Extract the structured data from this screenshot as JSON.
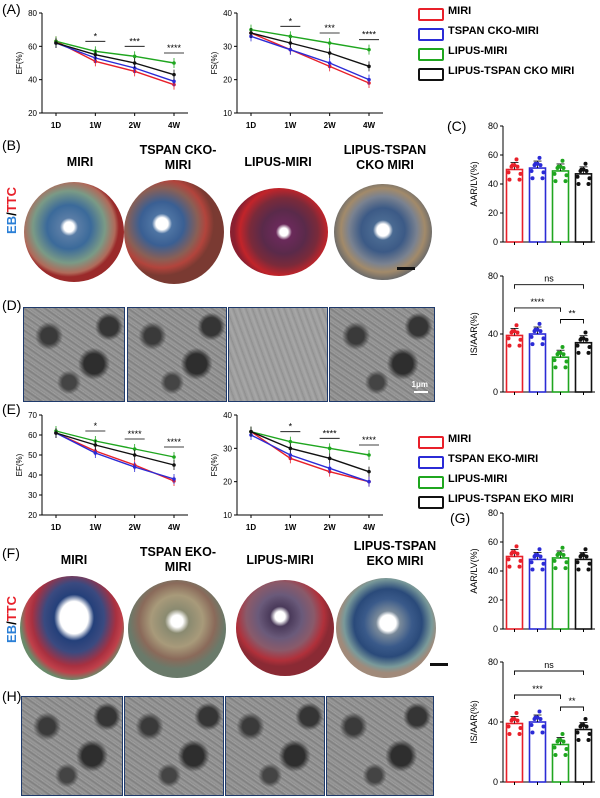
{
  "panels": {
    "A": "(A)",
    "B": "(B)",
    "C": "(C)",
    "D": "(D)",
    "E": "(E)",
    "F": "(F)",
    "G": "(G)",
    "H": "(H)"
  },
  "colors": {
    "red": "#e8202a",
    "blue": "#2b2bd6",
    "green": "#1fa61f",
    "black": "#111111"
  },
  "legend_top": [
    "MIRI",
    "TSPAN CKO-MIRI",
    "LIPUS-MIRI",
    "LIPUS-TSPAN CKO MIRI"
  ],
  "legend_bottom": [
    "MIRI",
    "TSPAN EKO-MIRI",
    "LIPUS-MIRI",
    "LIPUS-TSPAN EKO MIRI"
  ],
  "row_b_headers": [
    "MIRI",
    "TSPAN CKO-\nMIRI",
    "LIPUS-MIRI",
    "LIPUS-TSPAN\nCKO MIRI"
  ],
  "row_f_headers": [
    "MIRI",
    "TSPAN EKO-\nMIRI",
    "LIPUS-MIRI",
    "LIPUS-TSPAN\nEKO MIRI"
  ],
  "stain_label": {
    "eb": "EB",
    "slash": "/",
    "ttc": "TTC"
  },
  "scale_label": "1μm",
  "chart_data": [
    {
      "id": "A-EF",
      "type": "line",
      "ylabel": "EF(%)",
      "categories": [
        "1D",
        "1W",
        "2W",
        "4W"
      ],
      "ylim": [
        20,
        80
      ],
      "yticks": [
        20,
        40,
        60,
        80
      ],
      "series": [
        {
          "name": "MIRI",
          "values": [
            63,
            51,
            45,
            37
          ]
        },
        {
          "name": "TSPAN CKO-MIRI",
          "values": [
            62,
            53,
            47,
            39
          ]
        },
        {
          "name": "LIPUS-MIRI",
          "values": [
            63,
            57,
            54,
            50
          ]
        },
        {
          "name": "LIPUS-TSPAN CKO MIRI",
          "values": [
            62,
            55,
            50,
            43
          ]
        }
      ],
      "sig": [
        "",
        "*",
        "***",
        "****"
      ]
    },
    {
      "id": "A-FS",
      "type": "line",
      "ylabel": "FS(%)",
      "categories": [
        "1D",
        "1W",
        "2W",
        "4W"
      ],
      "ylim": [
        10,
        40
      ],
      "yticks": [
        10,
        20,
        30,
        40
      ],
      "series": [
        {
          "name": "MIRI",
          "values": [
            34,
            29,
            24,
            19
          ]
        },
        {
          "name": "TSPAN CKO-MIRI",
          "values": [
            33,
            29,
            25,
            20
          ]
        },
        {
          "name": "LIPUS-MIRI",
          "values": [
            35,
            33,
            31,
            29
          ]
        },
        {
          "name": "LIPUS-TSPAN CKO MIRI",
          "values": [
            34,
            31,
            28,
            24
          ]
        }
      ],
      "sig": [
        "",
        "*",
        "***",
        "****"
      ]
    },
    {
      "id": "C-AAR",
      "type": "bar",
      "ylabel": "AAR/LV(%)",
      "categories": [
        "MIRI",
        "TSPAN CKO-MIRI",
        "LIPUS-MIRI",
        "LIPUS-TSPAN CKO MIRI"
      ],
      "values": [
        50,
        51,
        49,
        47
      ],
      "ylim": [
        0,
        80
      ],
      "yticks": [
        0,
        20,
        40,
        60,
        80
      ]
    },
    {
      "id": "C-IS",
      "type": "bar",
      "ylabel": "IS/AAR(%)",
      "categories": [
        "MIRI",
        "TSPAN CKO-MIRI",
        "LIPUS-MIRI",
        "LIPUS-TSPAN CKO MIRI"
      ],
      "values": [
        39,
        40,
        24,
        34
      ],
      "ylim": [
        0,
        80
      ],
      "yticks": [
        0,
        40,
        80
      ],
      "brackets": [
        {
          "from": 0,
          "to": 3,
          "label": "ns"
        },
        {
          "from": 0,
          "to": 2,
          "label": "****"
        },
        {
          "from": 2,
          "to": 3,
          "label": "**"
        }
      ]
    },
    {
      "id": "E-EF",
      "type": "line",
      "ylabel": "EF(%)",
      "categories": [
        "1D",
        "1W",
        "2W",
        "4W"
      ],
      "ylim": [
        20,
        70
      ],
      "yticks": [
        20,
        30,
        40,
        50,
        60,
        70
      ],
      "series": [
        {
          "name": "MIRI",
          "values": [
            61,
            52,
            45,
            37
          ]
        },
        {
          "name": "TSPAN EKO-MIRI",
          "values": [
            61,
            51,
            44,
            38
          ]
        },
        {
          "name": "LIPUS-MIRI",
          "values": [
            62,
            57,
            53,
            49
          ]
        },
        {
          "name": "LIPUS-TSPAN EKO MIRI",
          "values": [
            61,
            55,
            50,
            45
          ]
        }
      ],
      "sig": [
        "",
        "*",
        "****",
        "****"
      ]
    },
    {
      "id": "E-FS",
      "type": "line",
      "ylabel": "FS(%)",
      "categories": [
        "1D",
        "1W",
        "2W",
        "4W"
      ],
      "ylim": [
        10,
        40
      ],
      "yticks": [
        10,
        20,
        30,
        40
      ],
      "series": [
        {
          "name": "MIRI",
          "values": [
            35,
            27,
            23,
            20
          ]
        },
        {
          "name": "TSPAN EKO-MIRI",
          "values": [
            34,
            28,
            24,
            20
          ]
        },
        {
          "name": "LIPUS-MIRI",
          "values": [
            35,
            32,
            30,
            28
          ]
        },
        {
          "name": "LIPUS-TSPAN EKO MIRI",
          "values": [
            35,
            30,
            27,
            23
          ]
        }
      ],
      "sig": [
        "",
        "*",
        "****",
        "****"
      ]
    },
    {
      "id": "G-AAR",
      "type": "bar",
      "ylabel": "AAR/LV(%)",
      "categories": [
        "MIRI",
        "TSPAN EKO-MIRI",
        "LIPUS-MIRI",
        "LIPUS-TSPAN EKO MIRI"
      ],
      "values": [
        50,
        48,
        49,
        48
      ],
      "ylim": [
        0,
        80
      ],
      "yticks": [
        0,
        20,
        40,
        60,
        80
      ]
    },
    {
      "id": "G-IS",
      "type": "bar",
      "ylabel": "IS/AAR(%)",
      "categories": [
        "MIRI",
        "TSPAN EKO-MIRI",
        "LIPUS-MIRI",
        "LIPUS-TSPAN EKO MIRI"
      ],
      "values": [
        39,
        40,
        25,
        35
      ],
      "ylim": [
        0,
        80
      ],
      "yticks": [
        0,
        40,
        80
      ],
      "brackets": [
        {
          "from": 0,
          "to": 3,
          "label": "ns"
        },
        {
          "from": 0,
          "to": 2,
          "label": "***"
        },
        {
          "from": 2,
          "to": 3,
          "label": "**"
        }
      ]
    }
  ]
}
